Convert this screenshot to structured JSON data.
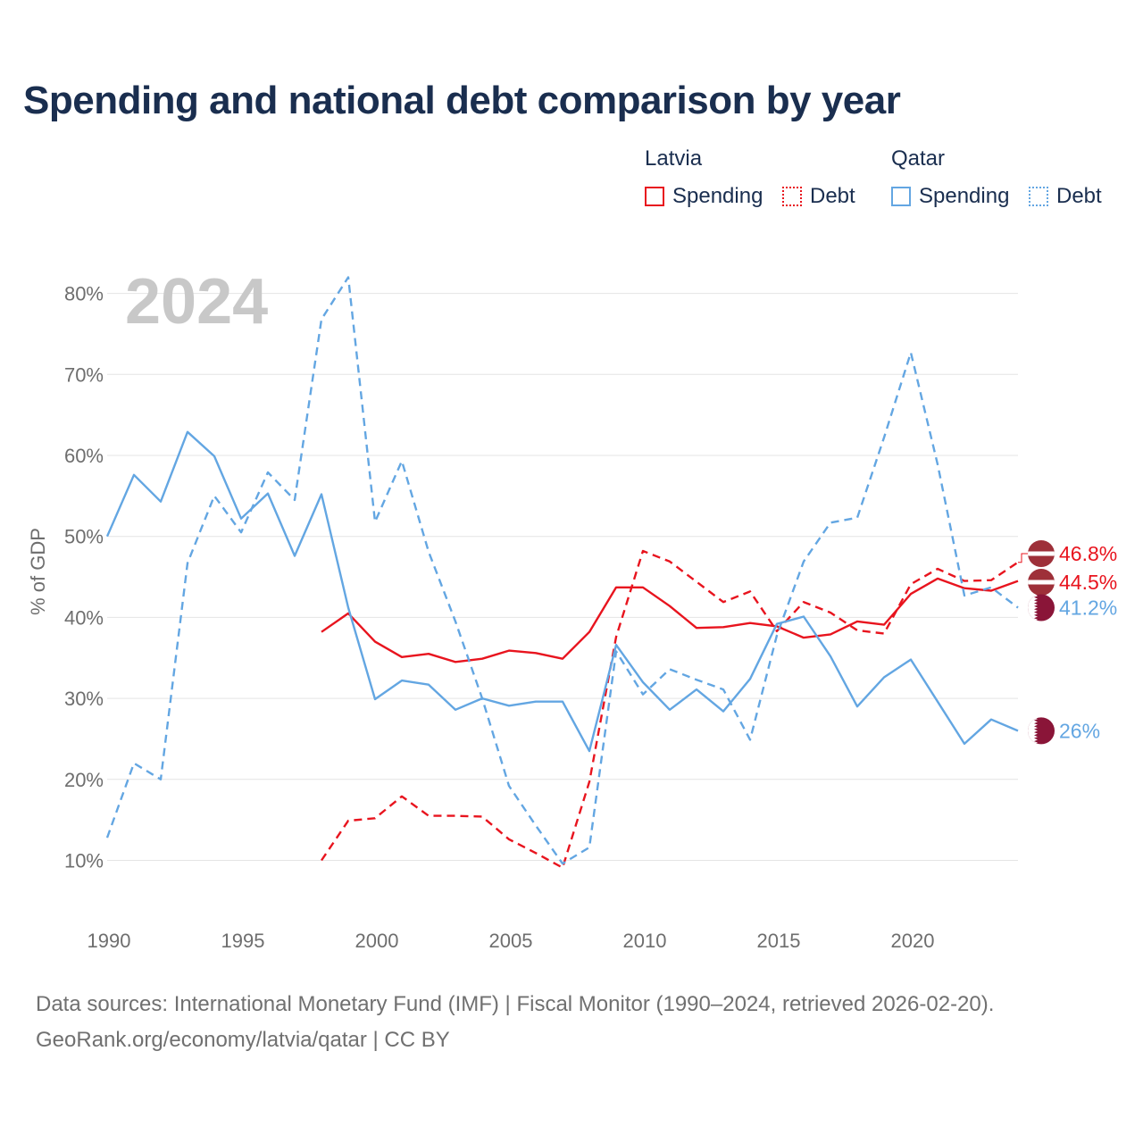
{
  "title": "Spending and national debt comparison by year",
  "legend": {
    "groups": [
      {
        "country": "Latvia",
        "items": [
          {
            "label": "Spending",
            "style": "solid",
            "color": "#e8141e"
          },
          {
            "label": "Debt",
            "style": "dotted",
            "color": "#e8141e"
          }
        ]
      },
      {
        "country": "Qatar",
        "items": [
          {
            "label": "Spending",
            "style": "solid",
            "color": "#63a6e2"
          },
          {
            "label": "Debt",
            "style": "dotted",
            "color": "#63a6e2"
          }
        ]
      }
    ]
  },
  "chart_data": {
    "type": "line",
    "year_label": "2024",
    "ylabel": "% of GDP",
    "xlabel": "",
    "xlim": [
      1990,
      2024
    ],
    "ylim": [
      4,
      85
    ],
    "x_ticks": [
      1990,
      1995,
      2000,
      2005,
      2010,
      2015,
      2020
    ],
    "y_ticks": [
      10,
      20,
      30,
      40,
      50,
      60,
      70,
      80
    ],
    "y_tick_labels": [
      "10%",
      "20%",
      "30%",
      "40%",
      "50%",
      "60%",
      "70%",
      "80%"
    ],
    "series": [
      {
        "name": "Latvia Spending",
        "country": "Latvia",
        "metric": "Spending",
        "color": "#e8141e",
        "dash": "solid",
        "end_label": "44.5%",
        "flag": "latvia",
        "x": [
          1998,
          1999,
          2000,
          2001,
          2002,
          2003,
          2004,
          2005,
          2006,
          2007,
          2008,
          2009,
          2010,
          2011,
          2012,
          2013,
          2014,
          2015,
          2016,
          2017,
          2018,
          2019,
          2020,
          2021,
          2022,
          2023,
          2024
        ],
        "y": [
          38.2,
          40.5,
          37.0,
          35.1,
          35.5,
          34.5,
          34.9,
          35.9,
          35.6,
          34.9,
          38.2,
          43.7,
          43.7,
          41.4,
          38.7,
          38.8,
          39.3,
          38.9,
          37.5,
          37.9,
          39.5,
          39.1,
          42.9,
          44.8,
          43.6,
          43.3,
          44.5
        ]
      },
      {
        "name": "Latvia Debt",
        "country": "Latvia",
        "metric": "Debt",
        "color": "#e8141e",
        "dash": "dashed",
        "end_label": "46.8%",
        "flag": "latvia",
        "x": [
          1998,
          1999,
          2000,
          2001,
          2002,
          2003,
          2004,
          2005,
          2006,
          2007,
          2008,
          2009,
          2010,
          2011,
          2012,
          2013,
          2014,
          2015,
          2016,
          2017,
          2018,
          2019,
          2020,
          2021,
          2022,
          2023,
          2024
        ],
        "y": [
          10.0,
          14.9,
          15.2,
          17.9,
          15.5,
          15.5,
          15.4,
          12.6,
          10.9,
          9.1,
          19.7,
          37.6,
          48.2,
          46.9,
          44.4,
          41.9,
          43.2,
          38.3,
          41.9,
          40.6,
          38.4,
          38.0,
          44.1,
          46.0,
          44.5,
          44.6,
          46.8
        ]
      },
      {
        "name": "Qatar Spending",
        "country": "Qatar",
        "metric": "Spending",
        "color": "#63a6e2",
        "dash": "solid",
        "end_label": "26%",
        "flag": "qatar",
        "x": [
          1990,
          1991,
          1992,
          1993,
          1994,
          1995,
          1996,
          1997,
          1998,
          1999,
          2000,
          2001,
          2002,
          2003,
          2004,
          2005,
          2006,
          2007,
          2008,
          2009,
          2010,
          2011,
          2012,
          2013,
          2014,
          2015,
          2016,
          2017,
          2018,
          2019,
          2020,
          2021,
          2022,
          2023,
          2024
        ],
        "y": [
          50.0,
          57.6,
          54.3,
          62.9,
          59.9,
          52.2,
          55.3,
          47.6,
          55.2,
          41.2,
          29.9,
          32.2,
          31.7,
          28.6,
          30.0,
          29.1,
          29.6,
          29.6,
          23.5,
          36.6,
          32.0,
          28.6,
          31.1,
          28.4,
          32.4,
          39.2,
          40.1,
          35.2,
          29.0,
          32.6,
          34.8,
          29.6,
          24.4,
          27.4,
          26.0
        ]
      },
      {
        "name": "Qatar Debt",
        "country": "Qatar",
        "metric": "Debt",
        "color": "#63a6e2",
        "dash": "dashed",
        "end_label": "41.2%",
        "flag": "qatar",
        "x": [
          1990,
          1991,
          1992,
          1993,
          1994,
          1995,
          1996,
          1997,
          1998,
          1999,
          2000,
          2001,
          2002,
          2003,
          2004,
          2005,
          2006,
          2007,
          2008,
          2009,
          2010,
          2011,
          2012,
          2013,
          2014,
          2015,
          2016,
          2017,
          2018,
          2019,
          2020,
          2021,
          2022,
          2023,
          2024
        ],
        "y": [
          12.8,
          22.0,
          20.0,
          46.7,
          55.0,
          50.5,
          57.9,
          54.5,
          76.8,
          82.0,
          51.8,
          59.3,
          48.1,
          39.5,
          30.0,
          19.2,
          14.3,
          9.6,
          11.6,
          35.8,
          30.5,
          33.6,
          32.3,
          31.1,
          24.9,
          37.8,
          46.9,
          51.7,
          52.3,
          62.2,
          72.7,
          58.9,
          42.7,
          43.7,
          41.2
        ]
      }
    ]
  },
  "colors": {
    "latvia_flag_red": "#9e3039",
    "qatar_flag_maroon": "#8a1538",
    "axis_text": "#6e6e6e",
    "grid": "#e4e4e4",
    "year_watermark": "#c8c8c8",
    "title": "#1a2e4f"
  },
  "footer": {
    "line1": "Data sources: International Monetary Fund (IMF) | Fiscal Monitor (1990–2024, retrieved 2026-02-20).",
    "line2": "GeoRank.org/economy/latvia/qatar | CC BY"
  }
}
